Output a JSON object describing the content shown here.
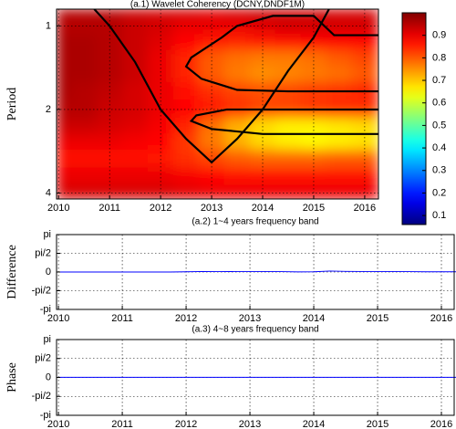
{
  "chart_data": [
    {
      "type": "heatmap",
      "title": "(a.1)  Wavelet Coherency (DCNY,DNDF1M)",
      "ylabel": "Period",
      "x": [
        2010,
        2010.5,
        2011,
        2011.5,
        2012,
        2012.5,
        2013,
        2013.5,
        2014,
        2014.5,
        2015,
        2015.5,
        2016
      ],
      "y": [
        0.9,
        1.0,
        1.15,
        1.3,
        1.5,
        1.7,
        2.0,
        2.3,
        2.6,
        3.0,
        3.5,
        4.0
      ],
      "values": [
        [
          0.95,
          0.95,
          0.95,
          0.93,
          0.92,
          0.92,
          0.91,
          0.92,
          0.93,
          0.93,
          0.93,
          0.92,
          0.92
        ],
        [
          0.95,
          0.95,
          0.95,
          0.93,
          0.92,
          0.9,
          0.9,
          0.9,
          0.91,
          0.92,
          0.92,
          0.92,
          0.92
        ],
        [
          0.96,
          0.96,
          0.95,
          0.93,
          0.91,
          0.88,
          0.86,
          0.85,
          0.86,
          0.87,
          0.88,
          0.88,
          0.88
        ],
        [
          0.96,
          0.96,
          0.95,
          0.93,
          0.9,
          0.85,
          0.8,
          0.78,
          0.77,
          0.77,
          0.78,
          0.8,
          0.82
        ],
        [
          0.96,
          0.96,
          0.95,
          0.93,
          0.9,
          0.85,
          0.8,
          0.77,
          0.75,
          0.76,
          0.77,
          0.78,
          0.8
        ],
        [
          0.96,
          0.95,
          0.94,
          0.92,
          0.9,
          0.87,
          0.84,
          0.82,
          0.81,
          0.82,
          0.83,
          0.84,
          0.85
        ],
        [
          0.95,
          0.95,
          0.93,
          0.92,
          0.9,
          0.88,
          0.86,
          0.84,
          0.82,
          0.82,
          0.83,
          0.84,
          0.84
        ],
        [
          0.93,
          0.93,
          0.92,
          0.91,
          0.89,
          0.85,
          0.78,
          0.72,
          0.68,
          0.66,
          0.66,
          0.67,
          0.68
        ],
        [
          0.9,
          0.9,
          0.9,
          0.89,
          0.88,
          0.83,
          0.77,
          0.72,
          0.68,
          0.66,
          0.65,
          0.66,
          0.67
        ],
        [
          0.87,
          0.87,
          0.87,
          0.87,
          0.86,
          0.84,
          0.82,
          0.8,
          0.79,
          0.79,
          0.79,
          0.8,
          0.8
        ],
        [
          0.9,
          0.9,
          0.9,
          0.9,
          0.9,
          0.89,
          0.88,
          0.87,
          0.87,
          0.87,
          0.87,
          0.87,
          0.87
        ],
        [
          0.92,
          0.92,
          0.92,
          0.92,
          0.92,
          0.91,
          0.9,
          0.9,
          0.9,
          0.9,
          0.9,
          0.9,
          0.9
        ]
      ],
      "colormap": "jet",
      "xlim": [
        2009.96,
        2016.27
      ],
      "xticks": [
        2010,
        2011,
        2012,
        2013,
        2014,
        2015,
        2016
      ],
      "ylim": [
        0.87,
        4.2
      ],
      "yticks": [
        1,
        2,
        4
      ],
      "ylog": true,
      "yreverse": true,
      "grid": true,
      "colorbar": {
        "clim": [
          0.06,
          1.0
        ],
        "ticks": [
          0.1,
          0.2,
          0.3,
          0.4,
          0.5,
          0.6,
          0.7,
          0.8,
          0.9
        ]
      },
      "contours": [
        {
          "x": [
            2010.7,
            2011,
            2011.5,
            2012,
            2012.5,
            2013,
            2013.5,
            2014,
            2014.5,
            2015,
            2015.3
          ],
          "y": [
            0.87,
            1.0,
            1.35,
            2.0,
            2.55,
            3.1,
            2.55,
            2.0,
            1.45,
            1.1,
            0.87
          ]
        },
        {
          "x": [
            2016.27,
            2015.4,
            2015.0,
            2014.2,
            2013.5,
            2013.2,
            2012.6,
            2012.5,
            2012.8,
            2013.5,
            2014.5,
            2015.5,
            2016.27
          ],
          "y": [
            1.08,
            1.08,
            0.92,
            0.92,
            1.0,
            1.1,
            1.3,
            1.4,
            1.55,
            1.7,
            1.72,
            1.72,
            1.72
          ]
        },
        {
          "x": [
            2016.27,
            2014,
            2013.0,
            2012.6,
            2012.7,
            2013.3,
            2014.5,
            2016.27
          ],
          "y": [
            2.45,
            2.45,
            2.35,
            2.2,
            2.1,
            2.0,
            2.0,
            2.0
          ]
        }
      ],
      "contour_color": "#000000"
    },
    {
      "type": "line",
      "title": "(a.2)  1~4 years frequency band",
      "ylabel": "Difference",
      "x": [
        2010,
        2010.25,
        2010.5,
        2010.75,
        2011,
        2011.25,
        2011.5,
        2011.75,
        2012,
        2012.25,
        2012.5,
        2012.75,
        2013,
        2013.25,
        2013.5,
        2013.75,
        2014,
        2014.25,
        2014.5,
        2014.75,
        2015,
        2015.25,
        2015.5,
        2015.75,
        2016,
        2016.25
      ],
      "series": [
        {
          "color": "#0000ff",
          "values": [
            0,
            0,
            0,
            0,
            0,
            0,
            0,
            0,
            0.02,
            0.04,
            0.03,
            0.04,
            0.03,
            0.04,
            0.03,
            0.01,
            0.02,
            0.08,
            0.05,
            0.04,
            0.03,
            0.04,
            0.03,
            0.02,
            0.02,
            0.02
          ]
        }
      ],
      "xlim": [
        2009.97,
        2016.2
      ],
      "xticks": [
        2010,
        2011,
        2012,
        2013,
        2014,
        2015,
        2016
      ],
      "ylim": [
        -3.1416,
        3.1416
      ],
      "yticks": [
        {
          "value": 3.1416,
          "label": "pi"
        },
        {
          "value": 1.5708,
          "label": "pi/2"
        },
        0,
        {
          "value": -1.5708,
          "label": "-pi/2"
        },
        {
          "value": -3.1416,
          "label": "-pi"
        }
      ],
      "grid": true
    },
    {
      "type": "line",
      "title": "(a.3)  4~8 years frequency band",
      "ylabel": "Phase",
      "x": [
        2010,
        2010.25,
        2010.5,
        2010.75,
        2011,
        2011.25,
        2011.5,
        2011.75,
        2012,
        2012.25,
        2012.5,
        2012.75,
        2013,
        2013.25,
        2013.5,
        2013.75,
        2014,
        2014.25,
        2014.5,
        2014.75,
        2015,
        2015.25,
        2015.5,
        2015.75,
        2016,
        2016.25
      ],
      "series": [
        {
          "color": "#0000ff",
          "values": [
            0.01,
            0.01,
            0.01,
            0.01,
            0.01,
            0.01,
            0.01,
            0.01,
            0.01,
            0.01,
            0.01,
            0.01,
            0.01,
            0.01,
            0.01,
            0.01,
            0.01,
            0.01,
            0.01,
            0.01,
            0.01,
            0.01,
            0.01,
            0.01,
            0.01,
            0.01
          ]
        }
      ],
      "xlim": [
        2009.97,
        2016.2
      ],
      "xticks": [
        2010,
        2011,
        2012,
        2013,
        2014,
        2015,
        2016
      ],
      "ylim": [
        -3.1416,
        3.1416
      ],
      "yticks": [
        {
          "value": 3.1416,
          "label": "pi"
        },
        {
          "value": 1.5708,
          "label": "pi/2"
        },
        0,
        {
          "value": -1.5708,
          "label": "-pi/2"
        },
        {
          "value": -3.1416,
          "label": "-pi"
        }
      ],
      "grid": true
    }
  ]
}
